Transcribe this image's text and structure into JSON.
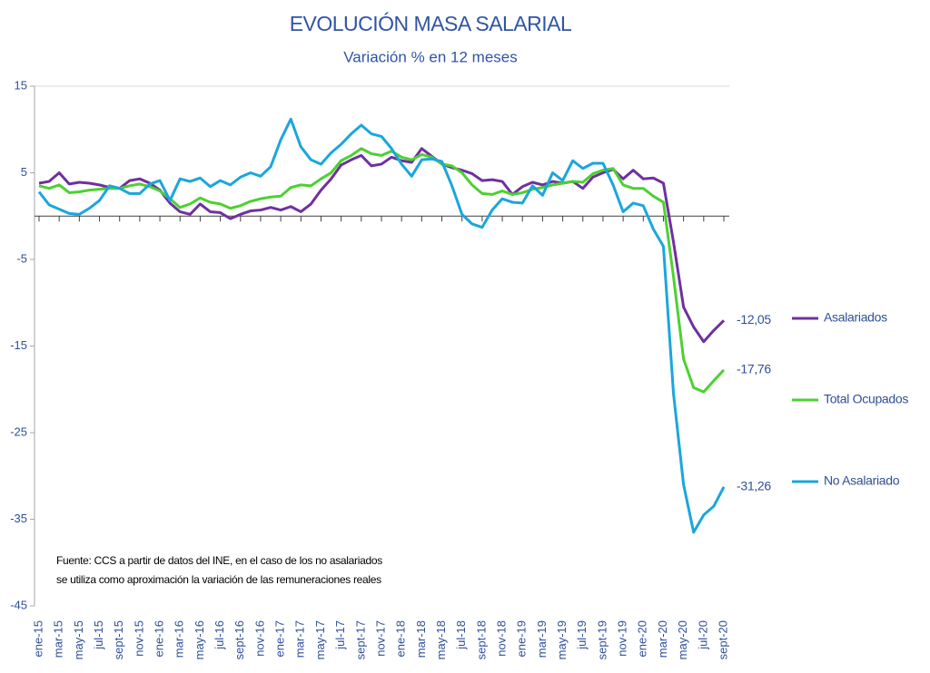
{
  "chart_data": {
    "type": "line",
    "title": "EVOLUCIÓN MASA SALARIAL",
    "subtitle": "Variación % en 12 meses",
    "categories": [
      "ene-15",
      null,
      "mar-15",
      null,
      "may-15",
      null,
      "jul-15",
      null,
      "sept-15",
      null,
      "nov-15",
      null,
      "ene-16",
      null,
      "mar-16",
      null,
      "may-16",
      null,
      "jul-16",
      null,
      "sept-16",
      null,
      "nov-16",
      null,
      "ene-17",
      null,
      "mar-17",
      null,
      "may-17",
      null,
      "jul-17",
      null,
      "sept-17",
      null,
      "nov-17",
      null,
      "ene-18",
      null,
      "mar-18",
      null,
      "may-18",
      null,
      "jul-18",
      null,
      "sept-18",
      null,
      "nov-18",
      null,
      "ene-19",
      null,
      "mar-19",
      null,
      "may-19",
      null,
      "jul-19",
      null,
      "sept-19",
      null,
      "nov-19",
      null,
      "ene-20",
      null,
      "mar-20",
      null,
      "may-20",
      null,
      "jul-20",
      null,
      "sept-20"
    ],
    "series": [
      {
        "name": "Asalariados",
        "color": "#7030a0",
        "values": [
          3.8,
          4.0,
          5.0,
          3.7,
          3.9,
          3.8,
          3.6,
          3.3,
          3.2,
          4.1,
          4.3,
          3.8,
          3.0,
          1.5,
          0.5,
          0.2,
          1.4,
          0.5,
          0.4,
          -0.3,
          0.2,
          0.6,
          0.7,
          1.0,
          0.7,
          1.1,
          0.5,
          1.4,
          3.0,
          4.3,
          5.9,
          6.5,
          7.0,
          5.8,
          6.0,
          6.8,
          6.4,
          6.2,
          7.8,
          6.9,
          6.0,
          5.6,
          5.3,
          4.9,
          4.1,
          4.2,
          4.0,
          2.5,
          3.4,
          3.9,
          3.6,
          4.0,
          3.8,
          4.0,
          3.2,
          4.5,
          5.0,
          5.4,
          4.3,
          5.3,
          4.3,
          4.4,
          3.8,
          -3.0,
          -10.5,
          -12.8,
          -14.5,
          -13.2,
          -12.05
        ],
        "value_labels": [
          null,
          null,
          null,
          null,
          null,
          null,
          null,
          null,
          null,
          null,
          null,
          null,
          null,
          null,
          null,
          null,
          null,
          null,
          null,
          null,
          null,
          null,
          null,
          null,
          null,
          null,
          null,
          null,
          null,
          null,
          null,
          null,
          null,
          null,
          null,
          null,
          null,
          null,
          null,
          null,
          null,
          null,
          null,
          null,
          null,
          null,
          null,
          null,
          null,
          null,
          null,
          null,
          null,
          null,
          null,
          null,
          null,
          null,
          null,
          null,
          null,
          null,
          null,
          null,
          null,
          null,
          null,
          null,
          "-12,05"
        ]
      },
      {
        "name": "Total Ocupados",
        "color": "#4cd130",
        "values": [
          3.5,
          3.2,
          3.6,
          2.7,
          2.8,
          3.0,
          3.1,
          3.2,
          3.2,
          3.5,
          3.7,
          3.4,
          2.9,
          2.0,
          1.0,
          1.4,
          2.1,
          1.6,
          1.4,
          0.9,
          1.2,
          1.7,
          2.0,
          2.2,
          2.3,
          3.3,
          3.6,
          3.5,
          4.3,
          5.0,
          6.4,
          7.0,
          7.8,
          7.2,
          7.0,
          7.5,
          6.8,
          6.5,
          7.1,
          6.8,
          6.0,
          5.8,
          5.0,
          3.6,
          2.6,
          2.5,
          2.9,
          2.5,
          2.7,
          3.1,
          3.3,
          3.6,
          3.8,
          4.0,
          3.9,
          4.9,
          5.3,
          5.5,
          3.6,
          3.2,
          3.2,
          2.3,
          1.6,
          -7.0,
          -16.5,
          -19.8,
          -20.3,
          -19.0,
          -17.76
        ],
        "value_labels": [
          null,
          null,
          null,
          null,
          null,
          null,
          null,
          null,
          null,
          null,
          null,
          null,
          null,
          null,
          null,
          null,
          null,
          null,
          null,
          null,
          null,
          null,
          null,
          null,
          null,
          null,
          null,
          null,
          null,
          null,
          null,
          null,
          null,
          null,
          null,
          null,
          null,
          null,
          null,
          null,
          null,
          null,
          null,
          null,
          null,
          null,
          null,
          null,
          null,
          null,
          null,
          null,
          null,
          null,
          null,
          null,
          null,
          null,
          null,
          null,
          null,
          null,
          null,
          null,
          null,
          null,
          null,
          null,
          "-17,76"
        ]
      },
      {
        "name": "No Asalariado",
        "color": "#1ba6dc",
        "values": [
          2.8,
          1.3,
          0.8,
          0.3,
          0.2,
          0.9,
          1.8,
          3.5,
          3.2,
          2.6,
          2.6,
          3.7,
          4.1,
          1.8,
          4.3,
          4.0,
          4.4,
          3.4,
          4.1,
          3.6,
          4.5,
          5.0,
          4.6,
          5.7,
          8.8,
          11.2,
          8.0,
          6.5,
          6.0,
          7.3,
          8.3,
          9.5,
          10.5,
          9.5,
          9.2,
          7.8,
          6.0,
          4.6,
          6.5,
          6.6,
          6.3,
          3.5,
          0.2,
          -0.9,
          -1.3,
          0.7,
          2.0,
          1.6,
          1.5,
          3.5,
          2.4,
          5.0,
          4.1,
          6.4,
          5.5,
          6.1,
          6.1,
          3.6,
          0.5,
          1.5,
          1.2,
          -1.5,
          -3.5,
          -20.5,
          -31.0,
          -36.5,
          -34.5,
          -33.5,
          -31.26
        ],
        "value_labels": [
          null,
          null,
          null,
          null,
          null,
          null,
          null,
          null,
          null,
          null,
          null,
          null,
          null,
          null,
          null,
          null,
          null,
          null,
          null,
          null,
          null,
          null,
          null,
          null,
          null,
          null,
          null,
          null,
          null,
          null,
          null,
          null,
          null,
          null,
          null,
          null,
          null,
          null,
          null,
          null,
          null,
          null,
          null,
          null,
          null,
          null,
          null,
          null,
          null,
          null,
          null,
          null,
          null,
          null,
          null,
          null,
          null,
          null,
          null,
          null,
          null,
          null,
          null,
          null,
          null,
          null,
          null,
          null,
          "-31,26"
        ]
      }
    ],
    "ylim": [
      -45,
      15
    ],
    "yticks": [
      15,
      5,
      -5,
      -15,
      -25,
      -35,
      -45
    ],
    "grid": false,
    "legend": "right",
    "annotations": [
      "Fuente: CCS a partir de datos del INE, en el caso de los no asalariados",
      "se utiliza como aproximación la variación de las remuneraciones reales"
    ]
  }
}
